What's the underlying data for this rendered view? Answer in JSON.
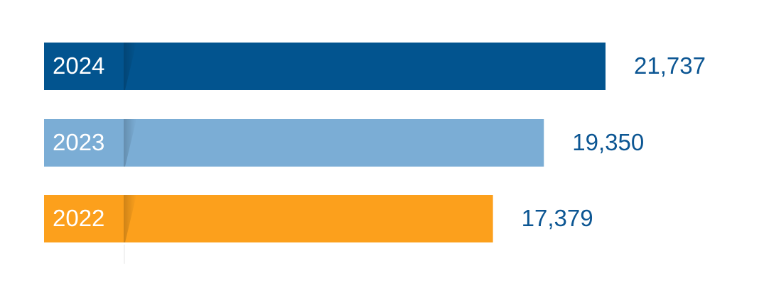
{
  "chart_data": {
    "type": "bar",
    "orientation": "horizontal",
    "categories": [
      "2024",
      "2023",
      "2022"
    ],
    "values": [
      21737,
      19350,
      17379
    ],
    "value_labels": [
      "21,737",
      "19,350",
      "17,379"
    ],
    "colors": [
      "#02548f",
      "#7badd5",
      "#fca01c"
    ],
    "label_color": "#0c5693"
  }
}
